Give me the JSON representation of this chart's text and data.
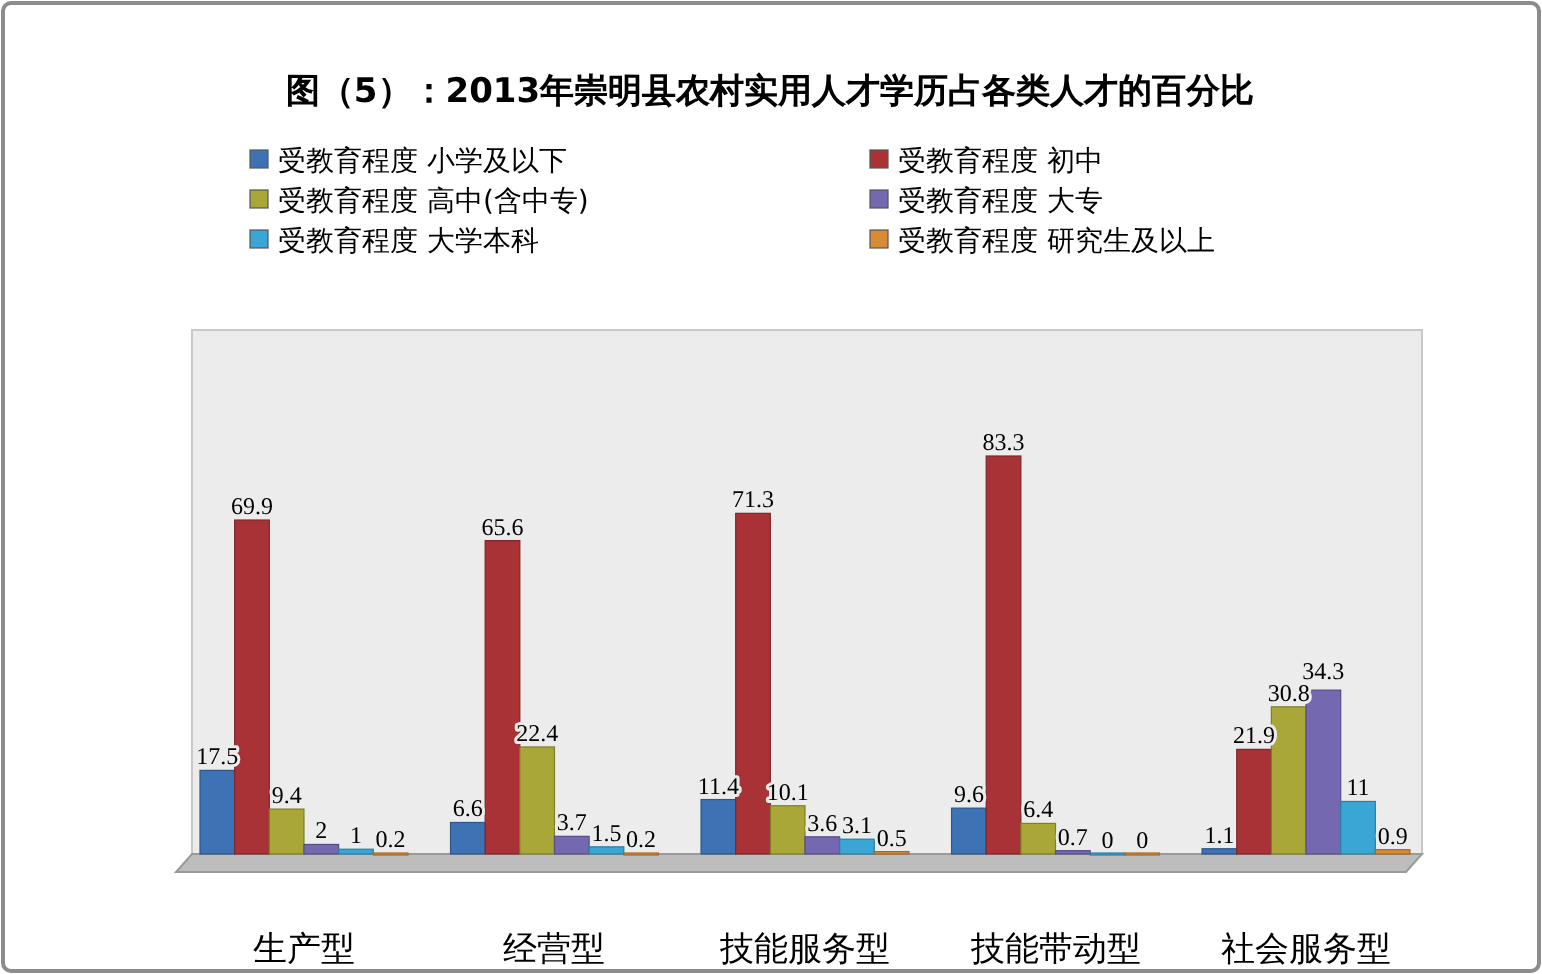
{
  "chart_data": {
    "type": "bar",
    "title": "图（5）：2013年崇明县农村实用人才学历占各类人才的百分比",
    "categories": [
      "生产型",
      "经营型",
      "技能服务型",
      "技能带动型",
      "社会服务型"
    ],
    "series": [
      {
        "name": "受教育程度 小学及以下",
        "color": "#3d72b4",
        "values": [
          17.5,
          6.6,
          11.4,
          9.6,
          1.1
        ]
      },
      {
        "name": "受教育程度 初中",
        "color": "#a83236",
        "values": [
          69.9,
          65.6,
          71.3,
          83.3,
          21.9
        ]
      },
      {
        "name": "受教育程度 高中(含中专)",
        "color": "#a9a738",
        "values": [
          9.4,
          22.4,
          10.1,
          6.4,
          30.8
        ]
      },
      {
        "name": "受教育程度 大专",
        "color": "#7468b0",
        "values": [
          2,
          3.7,
          3.6,
          0.7,
          34.3
        ]
      },
      {
        "name": "受教育程度 大学本科",
        "color": "#3aa6d6",
        "values": [
          1,
          1.5,
          3.1,
          0,
          11
        ]
      },
      {
        "name": "受教育程度 研究生及以上",
        "color": "#d98a35",
        "values": [
          0.2,
          0.2,
          0.5,
          0,
          0.9
        ]
      }
    ],
    "data_labels": true,
    "legend": "top"
  }
}
